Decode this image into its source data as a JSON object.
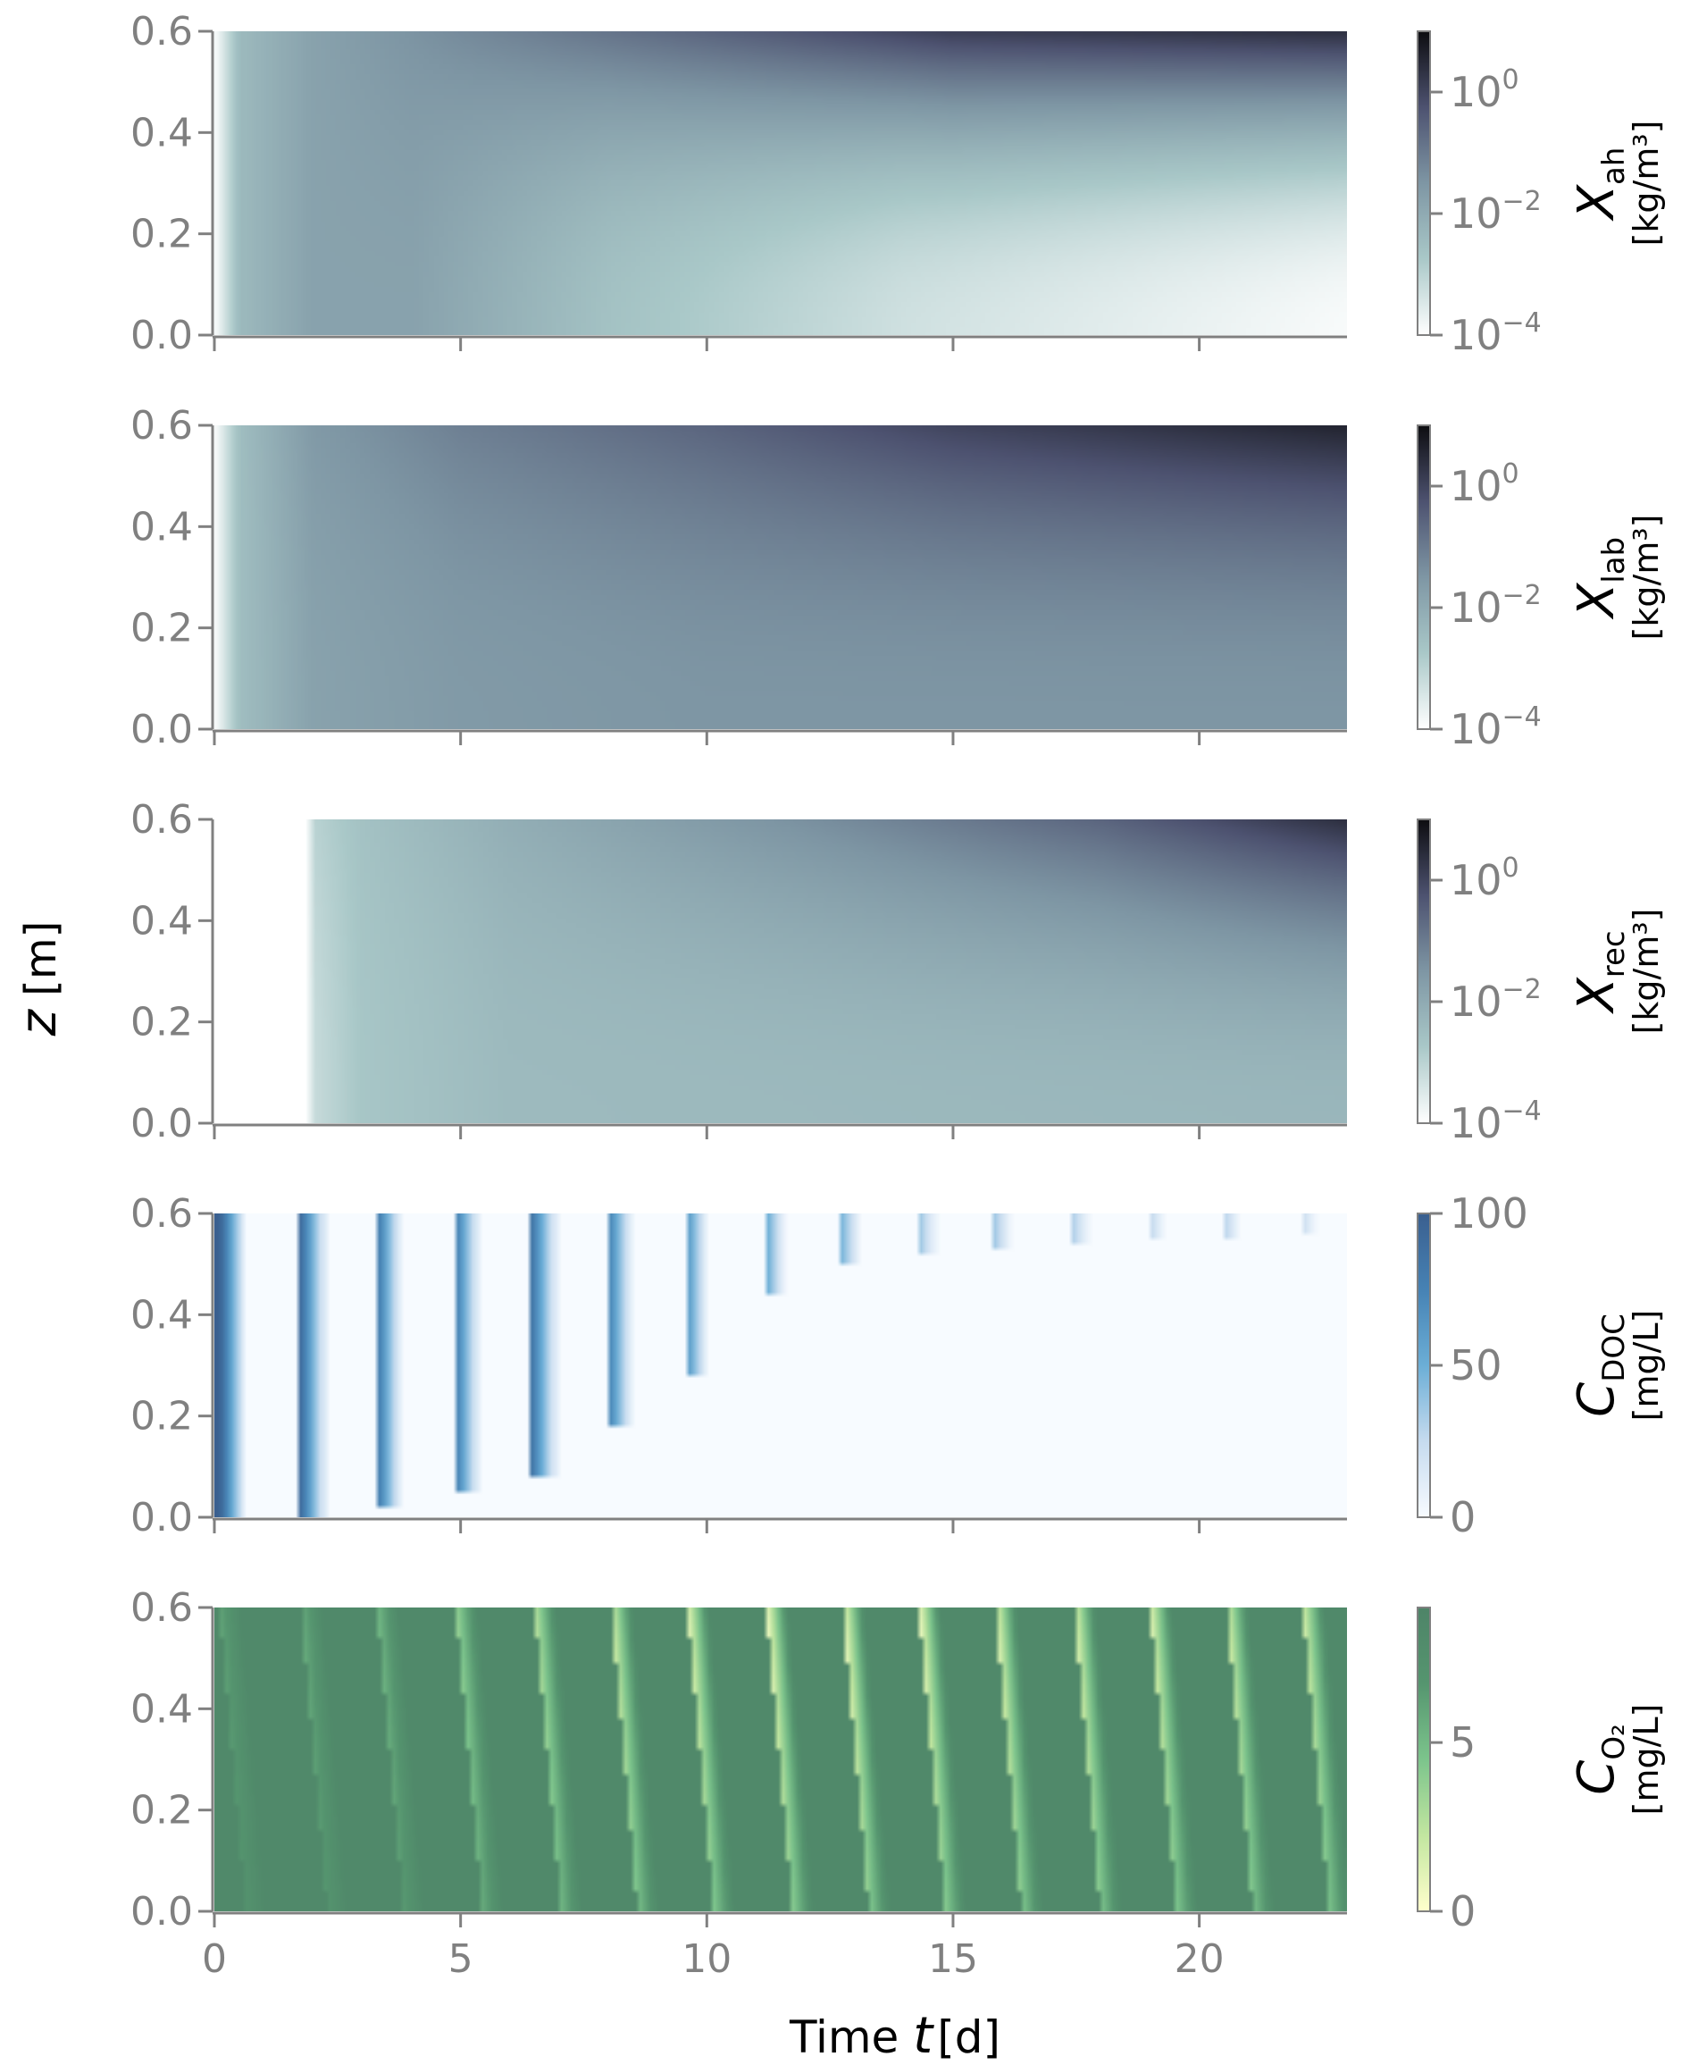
{
  "figure": {
    "ylabel_symbol": "z",
    "ylabel_unit": "[m]",
    "xlabel_prefix": "Time ",
    "xlabel_symbol": "t",
    "xlabel_unit": " [d]"
  },
  "chart_data": [
    {
      "type": "heatmap",
      "panel": "X_ah",
      "quantity_symbol": "X",
      "quantity_subscript": "ah",
      "colorbar_unit": "[kg/m³]",
      "colorbar_scale": "log",
      "colorbar_range": [
        0.0001,
        10
      ],
      "colorbar_ticks": [
        0.0001,
        0.01,
        1
      ],
      "colorbar_tick_labels": [
        {
          "base": "10",
          "exp": "−4"
        },
        {
          "base": "10",
          "exp": "−2"
        },
        {
          "base": "10",
          "exp": "0"
        }
      ],
      "colormap": [
        "#ffffff",
        "#a9c8c8",
        "#7e96a4",
        "#4d5270",
        "#0d0d10"
      ],
      "xlim": [
        0,
        23
      ],
      "ylim": [
        0,
        0.6
      ],
      "xticks": [
        0,
        5,
        10,
        15,
        20
      ],
      "yticks": [
        0.0,
        0.2,
        0.4,
        0.6
      ],
      "ytick_labels": [
        "0.0",
        "0.2",
        "0.4",
        "0.6"
      ],
      "xtick_labels": [
        "",
        "",
        "",
        "",
        ""
      ],
      "description_data": {
        "log10_top_by_time": [
          [
            0,
            -4
          ],
          [
            0.5,
            -2.4
          ],
          [
            2,
            -1.8
          ],
          [
            5,
            -1.3
          ],
          [
            10,
            -0.6
          ],
          [
            15,
            0.1
          ],
          [
            23,
            0.4
          ]
        ],
        "log10_bottom_by_time": [
          [
            0,
            -4
          ],
          [
            0.5,
            -2.4
          ],
          [
            2,
            -1.8
          ],
          [
            4,
            -1.8
          ],
          [
            8,
            -2.6
          ],
          [
            14,
            -3.3
          ],
          [
            23,
            -3.9
          ]
        ]
      }
    },
    {
      "type": "heatmap",
      "panel": "X_lab",
      "quantity_symbol": "X",
      "quantity_subscript": "lab",
      "colorbar_unit": "[kg/m³]",
      "colorbar_scale": "log",
      "colorbar_range": [
        0.0001,
        10
      ],
      "colorbar_ticks": [
        0.0001,
        0.01,
        1
      ],
      "colorbar_tick_labels": [
        {
          "base": "10",
          "exp": "−4"
        },
        {
          "base": "10",
          "exp": "−2"
        },
        {
          "base": "10",
          "exp": "0"
        }
      ],
      "colormap": [
        "#ffffff",
        "#a9c8c8",
        "#7e96a4",
        "#4d5270",
        "#0d0d10"
      ],
      "xlim": [
        0,
        23
      ],
      "ylim": [
        0,
        0.6
      ],
      "xticks": [
        0,
        5,
        10,
        15,
        20
      ],
      "yticks": [
        0.0,
        0.2,
        0.4,
        0.6
      ],
      "ytick_labels": [
        "0.0",
        "0.2",
        "0.4",
        "0.6"
      ],
      "xtick_labels": [
        "",
        "",
        "",
        "",
        ""
      ],
      "description_data": {
        "log10_top_by_time": [
          [
            0,
            -4
          ],
          [
            0.5,
            -2.5
          ],
          [
            2,
            -1.6
          ],
          [
            5,
            -1.1
          ],
          [
            10,
            -0.6
          ],
          [
            15,
            0.0
          ],
          [
            23,
            0.6
          ]
        ],
        "log10_bottom_by_time": [
          [
            0,
            -4
          ],
          [
            0.5,
            -2.5
          ],
          [
            2,
            -1.8
          ],
          [
            5,
            -1.6
          ],
          [
            10,
            -1.5
          ],
          [
            23,
            -1.5
          ]
        ]
      }
    },
    {
      "type": "heatmap",
      "panel": "X_rec",
      "quantity_symbol": "X",
      "quantity_subscript": "rec",
      "colorbar_unit": "[kg/m³]",
      "colorbar_scale": "log",
      "colorbar_range": [
        0.0001,
        10
      ],
      "colorbar_ticks": [
        0.0001,
        0.01,
        1
      ],
      "colorbar_tick_labels": [
        {
          "base": "10",
          "exp": "−4"
        },
        {
          "base": "10",
          "exp": "−2"
        },
        {
          "base": "10",
          "exp": "0"
        }
      ],
      "colormap": [
        "#ffffff",
        "#a9c8c8",
        "#7e96a4",
        "#4d5270",
        "#0d0d10"
      ],
      "xlim": [
        0,
        23
      ],
      "ylim": [
        0,
        0.6
      ],
      "xticks": [
        0,
        5,
        10,
        15,
        20
      ],
      "yticks": [
        0.0,
        0.2,
        0.4,
        0.6
      ],
      "ytick_labels": [
        "0.0",
        "0.2",
        "0.4",
        "0.6"
      ],
      "xtick_labels": [
        "",
        "",
        "",
        "",
        ""
      ],
      "description_data": {
        "log10_top_by_time": [
          [
            0,
            -4
          ],
          [
            1.9,
            -4
          ],
          [
            2,
            -3.0
          ],
          [
            3,
            -2.6
          ],
          [
            6,
            -2.1
          ],
          [
            12,
            -1.4
          ],
          [
            18,
            -0.6
          ],
          [
            23,
            0.4
          ]
        ],
        "log10_bottom_by_time": [
          [
            0,
            -4
          ],
          [
            1.9,
            -4
          ],
          [
            2,
            -3.2
          ],
          [
            3,
            -2.7
          ],
          [
            6,
            -2.4
          ],
          [
            23,
            -2.3
          ]
        ]
      }
    },
    {
      "type": "heatmap",
      "panel": "C_DOC",
      "quantity_symbol": "C",
      "quantity_subscript": "DOC",
      "colorbar_unit": "[mg/L]",
      "colorbar_scale": "linear",
      "colorbar_range": [
        0,
        100
      ],
      "colorbar_ticks": [
        0,
        50,
        100
      ],
      "colorbar_tick_labels": [
        {
          "base": "0",
          "exp": ""
        },
        {
          "base": "50",
          "exp": ""
        },
        {
          "base": "100",
          "exp": ""
        }
      ],
      "colormap": [
        "#f7fbff",
        "#c6dbef",
        "#6baed6",
        "#4682b4",
        "#3a5f8f"
      ],
      "xlim": [
        0,
        23
      ],
      "ylim": [
        0,
        0.6
      ],
      "xticks": [
        0,
        5,
        10,
        15,
        20
      ],
      "yticks": [
        0.0,
        0.2,
        0.4,
        0.6
      ],
      "ytick_labels": [
        "0.0",
        "0.2",
        "0.4",
        "0.6"
      ],
      "xtick_labels": [
        "",
        "",
        "",
        "",
        ""
      ],
      "description_data": {
        "pulse_times_d": [
          0.1,
          1.75,
          3.3,
          4.9,
          6.5,
          8.05,
          9.6,
          11.2,
          12.75,
          14.3,
          15.85,
          17.45,
          19.0,
          20.55,
          22.1
        ],
        "pulse_peak_mg_per_L": [
          100,
          90,
          85,
          80,
          75,
          70,
          65,
          55,
          45,
          40,
          35,
          30,
          28,
          26,
          24
        ],
        "pulse_penetration_depth_m": [
          0.6,
          0.6,
          0.58,
          0.55,
          0.52,
          0.42,
          0.32,
          0.16,
          0.1,
          0.08,
          0.07,
          0.06,
          0.05,
          0.05,
          0.04
        ]
      }
    },
    {
      "type": "heatmap",
      "panel": "C_O2",
      "quantity_symbol": "C",
      "quantity_subscript": "O₂",
      "colorbar_unit": "[mg/L]",
      "colorbar_scale": "linear",
      "colorbar_range": [
        0,
        9
      ],
      "colorbar_ticks": [
        0,
        5
      ],
      "colorbar_tick_labels": [
        {
          "base": "0",
          "exp": ""
        },
        {
          "base": "5",
          "exp": ""
        }
      ],
      "colormap": [
        "#ffffcc",
        "#c2e6a0",
        "#7cc48c",
        "#55956f",
        "#4e8468"
      ],
      "xlim": [
        0,
        23
      ],
      "ylim": [
        0,
        0.6
      ],
      "xticks": [
        0,
        5,
        10,
        15,
        20
      ],
      "yticks": [
        0.0,
        0.2,
        0.4,
        0.6
      ],
      "ytick_labels": [
        "0.0",
        "0.2",
        "0.4",
        "0.6"
      ],
      "xtick_labels": [
        "0",
        "5",
        "10",
        "15",
        "20"
      ],
      "description_data": {
        "background_mg_per_L": 8.4,
        "pulse_times_d": [
          0.1,
          1.75,
          3.3,
          4.9,
          6.5,
          8.05,
          9.6,
          11.2,
          12.75,
          14.3,
          15.85,
          17.45,
          19.0,
          20.55,
          22.1
        ],
        "pulse_min_mg_per_L": [
          6.0,
          5.5,
          5.0,
          3.5,
          2.5,
          1.5,
          1.0,
          0.5,
          0.4,
          0.6,
          0.8,
          1.0,
          1.2,
          1.4,
          1.6
        ]
      }
    }
  ]
}
